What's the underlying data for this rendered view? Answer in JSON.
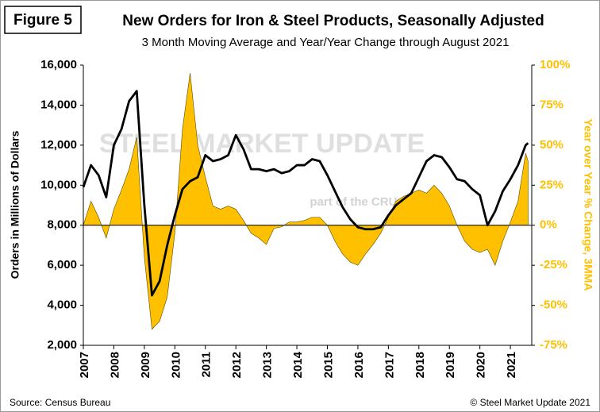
{
  "chart_data": {
    "type": "line-area",
    "figure_label": "Figure 5",
    "title": "New Orders for Iron & Steel Products, Seasonally Adjusted",
    "subtitle": "3 Month Moving Average and Year/Year Change through August 2021",
    "y_label": "Orders in Millions of Dollars",
    "y2_label": "Year over Year % Change, 3MMA",
    "source": "Source: Census Bureau",
    "credit": "© Steel Market Update 2021",
    "watermark": [
      "STEEL MARKET UPDATE",
      "part of the CRU Group"
    ],
    "x": [
      2007,
      2007.25,
      2007.5,
      2007.75,
      2008,
      2008.25,
      2008.5,
      2008.75,
      2009,
      2009.25,
      2009.5,
      2009.75,
      2010,
      2010.25,
      2010.5,
      2010.75,
      2011,
      2011.25,
      2011.5,
      2011.75,
      2012,
      2012.25,
      2012.5,
      2012.75,
      2013,
      2013.25,
      2013.5,
      2013.75,
      2014,
      2014.25,
      2014.5,
      2014.75,
      2015,
      2015.25,
      2015.5,
      2015.75,
      2016,
      2016.25,
      2016.5,
      2016.75,
      2017,
      2017.25,
      2017.5,
      2017.75,
      2018,
      2018.25,
      2018.5,
      2018.75,
      2019,
      2019.25,
      2019.5,
      2019.75,
      2020,
      2020.25,
      2020.5,
      2020.75,
      2021,
      2021.25,
      2021.5,
      2021.58
    ],
    "xlim": [
      2007,
      2021.7
    ],
    "xticks": [
      2007,
      2008,
      2009,
      2010,
      2011,
      2012,
      2013,
      2014,
      2015,
      2016,
      2017,
      2018,
      2019,
      2020,
      2021
    ],
    "ylim": [
      2000,
      16000
    ],
    "yticks": [
      {
        "value": 2000,
        "label": "2,000"
      },
      {
        "value": 4000,
        "label": "4,000"
      },
      {
        "value": 6000,
        "label": "6,000"
      },
      {
        "value": 8000,
        "label": "8,000"
      },
      {
        "value": 10000,
        "label": "10,000"
      },
      {
        "value": 12000,
        "label": "12,000"
      },
      {
        "value": 14000,
        "label": "14,000"
      },
      {
        "value": 16000,
        "label": "16,000"
      }
    ],
    "y2lim": [
      -75,
      100
    ],
    "y2ticks": [
      {
        "value": -75,
        "label": "-75%"
      },
      {
        "value": -50,
        "label": "-50%"
      },
      {
        "value": -25,
        "label": "-25%"
      },
      {
        "value": 0,
        "label": "0%"
      },
      {
        "value": 25,
        "label": "25%"
      },
      {
        "value": 50,
        "label": "50%"
      },
      {
        "value": 75,
        "label": "75%"
      },
      {
        "value": 100,
        "label": "100%"
      }
    ],
    "series": [
      {
        "type": "area",
        "axis": "y2",
        "color": "#ffc000",
        "values": [
          0,
          15,
          5,
          -8,
          10,
          22,
          35,
          55,
          -20,
          -65,
          -60,
          -45,
          -5,
          60,
          95,
          50,
          30,
          12,
          10,
          12,
          10,
          3,
          -5,
          -8,
          -12,
          -2,
          -1,
          2,
          2,
          3,
          5,
          5,
          0,
          -10,
          -18,
          -23,
          -25,
          -18,
          -12,
          -5,
          5,
          15,
          18,
          20,
          22,
          20,
          25,
          20,
          12,
          0,
          -10,
          -15,
          -17,
          -15,
          -25,
          -10,
          2,
          15,
          45,
          40
        ]
      },
      {
        "type": "line",
        "axis": "y",
        "color": "#000000",
        "values": [
          9900,
          11000,
          10500,
          9400,
          12000,
          12800,
          14200,
          14700,
          9000,
          4500,
          5200,
          7000,
          8500,
          9800,
          10200,
          10400,
          11500,
          11200,
          11300,
          11500,
          12500,
          11800,
          10800,
          10800,
          10700,
          10800,
          10600,
          10700,
          11000,
          11000,
          11300,
          11200,
          10500,
          9700,
          8900,
          8300,
          7900,
          7800,
          7800,
          7900,
          8500,
          9000,
          9300,
          9600,
          10400,
          11200,
          11500,
          11400,
          10900,
          10300,
          10200,
          9800,
          9500,
          8000,
          8700,
          9700,
          10300,
          11000,
          12000,
          12100
        ]
      }
    ]
  }
}
